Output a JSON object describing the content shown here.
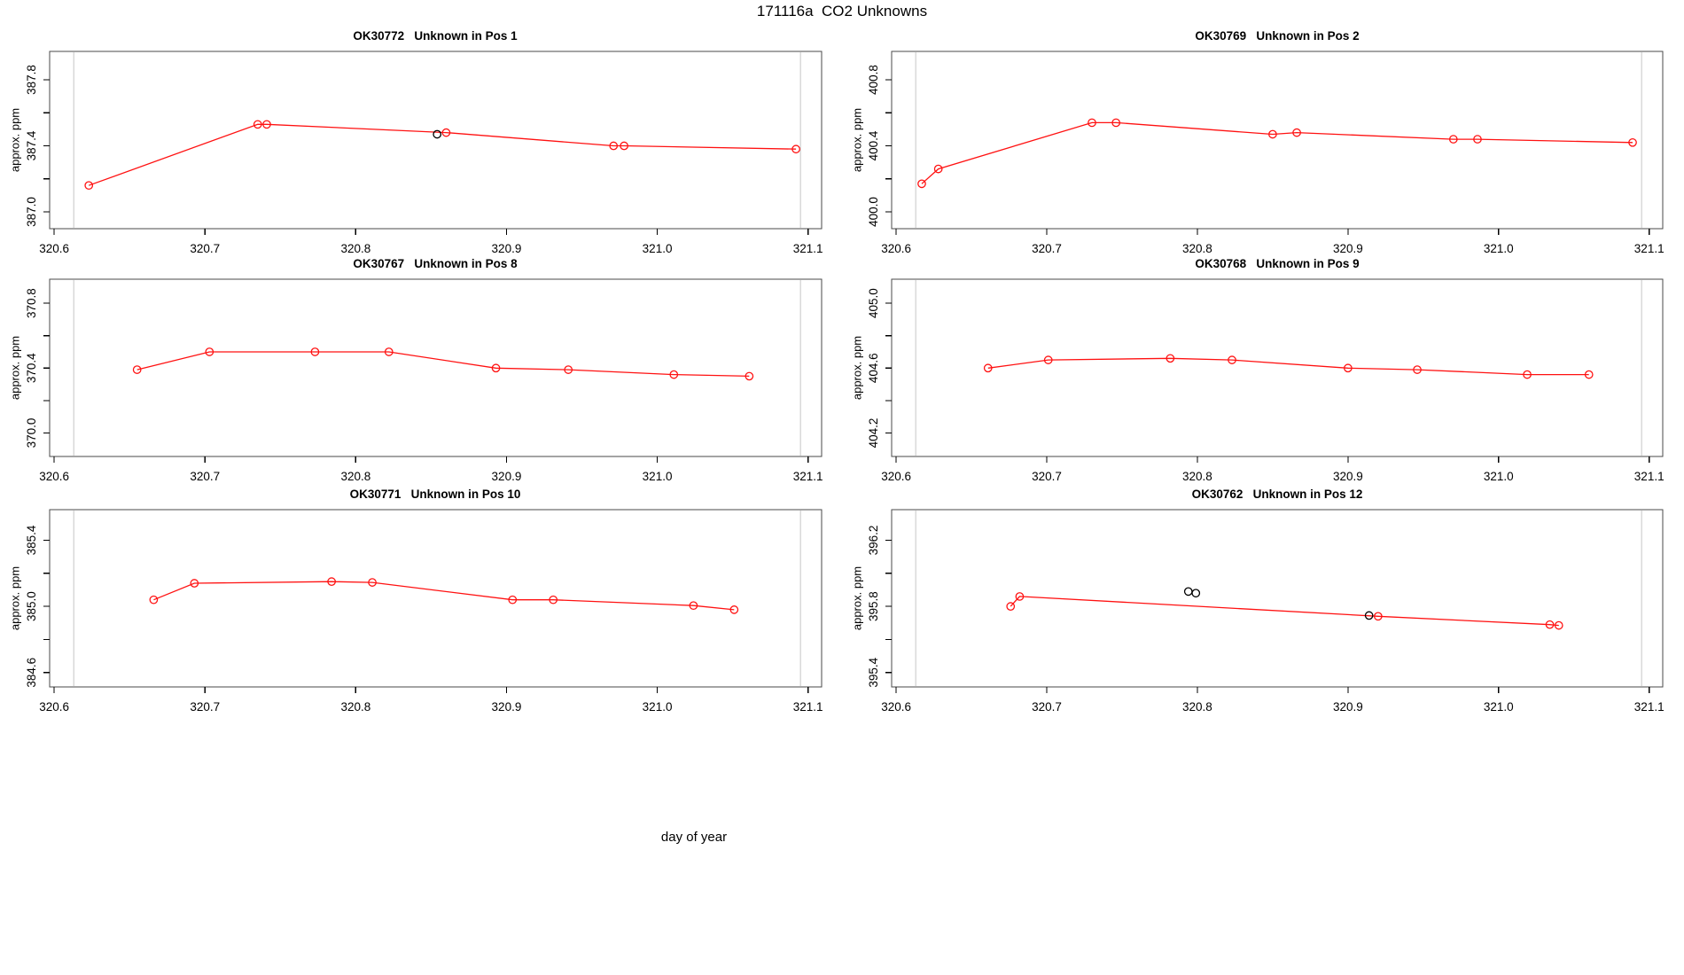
{
  "main_title": "171116a  CO2 Unknowns",
  "x_axis_label": "day of year",
  "y_axis_label": "approx. ppm",
  "colors": {
    "series": "#ff1111",
    "flagged": "#000000",
    "reference_line": "#d0d0d0",
    "box": "#4a4a4a",
    "tick": "#000000"
  },
  "x_ticks": [
    320.6,
    320.7,
    320.8,
    320.9,
    321.0,
    321.1
  ],
  "xlim": [
    320.597,
    321.109
  ],
  "ref_lines_x": [
    320.613,
    321.095
  ],
  "chart_data": [
    {
      "type": "line",
      "title": "OK30772   Unknown in Pos 1",
      "ylim": [
        386.898,
        387.972
      ],
      "y_ticks": [
        387.0,
        387.2,
        387.4,
        387.6,
        387.8
      ],
      "y_labeled_tick_indices": [
        0,
        2,
        4
      ],
      "series": [
        {
          "name": "unknown",
          "x": [
            320.623,
            320.735,
            320.741,
            320.86,
            320.971,
            320.978,
            321.092
          ],
          "y": [
            387.16,
            387.53,
            387.53,
            387.48,
            387.4,
            387.4,
            387.38
          ]
        }
      ],
      "flagged_points": {
        "x": [
          320.854
        ],
        "y": [
          387.47
        ]
      }
    },
    {
      "type": "line",
      "title": "OK30769   Unknown in Pos 2",
      "ylim": [
        399.898,
        400.972
      ],
      "y_ticks": [
        400.0,
        400.2,
        400.4,
        400.6,
        400.8
      ],
      "y_labeled_tick_indices": [
        0,
        2,
        4
      ],
      "series": [
        {
          "name": "unknown",
          "x": [
            320.617,
            320.628,
            320.73,
            320.746,
            320.85,
            320.866,
            320.97,
            320.986,
            321.089
          ],
          "y": [
            400.17,
            400.26,
            400.54,
            400.54,
            400.47,
            400.48,
            400.44,
            400.44,
            400.42
          ]
        }
      ],
      "flagged_points": {
        "x": [],
        "y": []
      }
    },
    {
      "type": "line",
      "title": "OK30767   Unknown in Pos 8",
      "ylim": [
        369.855,
        370.948
      ],
      "y_ticks": [
        370.0,
        370.2,
        370.4,
        370.6,
        370.8
      ],
      "y_labeled_tick_indices": [
        0,
        2,
        4
      ],
      "series": [
        {
          "name": "unknown",
          "x": [
            320.655,
            320.703,
            320.773,
            320.822,
            320.893,
            320.941,
            321.011,
            321.061
          ],
          "y": [
            370.39,
            370.5,
            370.5,
            370.5,
            370.4,
            370.39,
            370.36,
            370.35
          ]
        }
      ],
      "flagged_points": {
        "x": [],
        "y": []
      }
    },
    {
      "type": "line",
      "title": "OK30768   Unknown in Pos 9",
      "ylim": [
        404.055,
        405.148
      ],
      "y_ticks": [
        404.2,
        404.4,
        404.6,
        404.8,
        405.0
      ],
      "y_labeled_tick_indices": [
        0,
        2,
        4
      ],
      "series": [
        {
          "name": "unknown",
          "x": [
            320.661,
            320.701,
            320.782,
            320.823,
            320.9,
            320.946,
            321.019,
            321.06
          ],
          "y": [
            404.6,
            404.65,
            404.66,
            404.65,
            404.6,
            404.59,
            404.56,
            404.56
          ]
        }
      ],
      "flagged_points": {
        "x": [],
        "y": []
      }
    },
    {
      "type": "line",
      "title": "OK30771   Unknown in Pos 10",
      "ylim": [
        384.513,
        385.585
      ],
      "y_ticks": [
        384.6,
        384.8,
        385.0,
        385.2,
        385.4
      ],
      "y_labeled_tick_indices": [
        0,
        2,
        4
      ],
      "series": [
        {
          "name": "unknown",
          "x": [
            320.666,
            320.693,
            320.784,
            320.811,
            320.904,
            320.931,
            321.024,
            321.051
          ],
          "y": [
            385.04,
            385.14,
            385.15,
            385.145,
            385.04,
            385.04,
            385.005,
            384.98
          ]
        }
      ],
      "flagged_points": {
        "x": [],
        "y": []
      }
    },
    {
      "type": "line",
      "title": "OK30762   Unknown in Pos 12",
      "ylim": [
        395.313,
        396.385
      ],
      "y_ticks": [
        395.4,
        395.6,
        395.8,
        396.0,
        396.2
      ],
      "y_labeled_tick_indices": [
        0,
        2,
        4
      ],
      "series": [
        {
          "name": "unknown",
          "x": [
            320.676,
            320.682,
            320.92,
            321.034,
            321.04
          ],
          "y": [
            395.8,
            395.86,
            395.74,
            395.69,
            395.685
          ]
        }
      ],
      "flagged_points": {
        "x": [
          320.794,
          320.799,
          320.914
        ],
        "y": [
          395.89,
          395.88,
          395.745
        ]
      }
    }
  ]
}
